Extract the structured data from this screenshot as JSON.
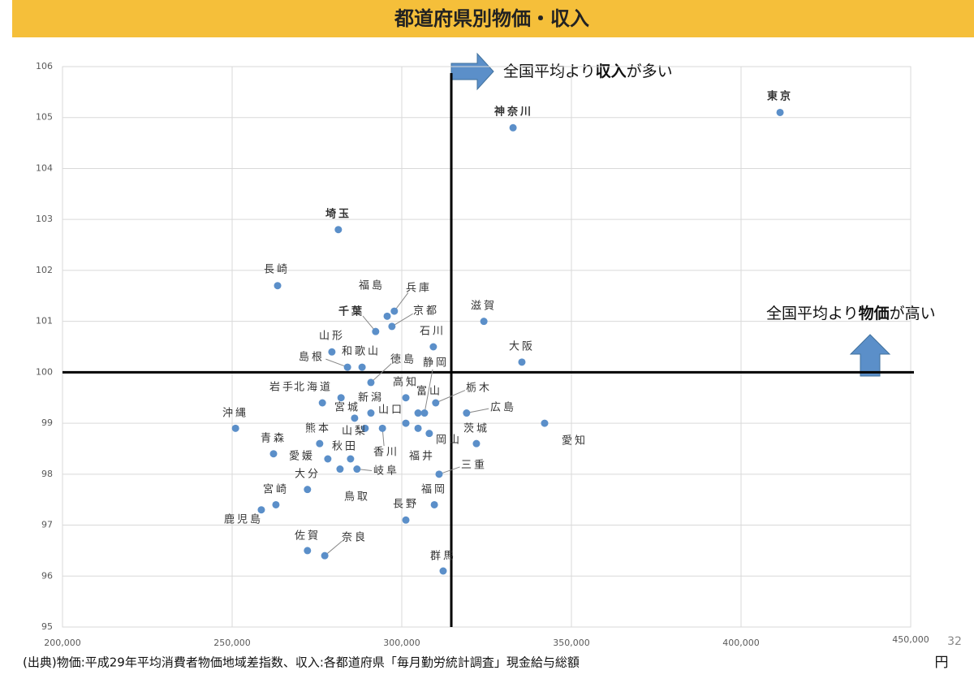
{
  "chart_data": {
    "type": "scatter",
    "title": "都道府県別物価・収入",
    "source": "(出典)物価:平成29年平均消費者物価地域差指数、収入:各都道府県「毎月勤労統計調査」現金給与総額",
    "x_unit": "円",
    "page_number": "32",
    "annotation_x": [
      "全国平均より",
      "収入",
      "が多い"
    ],
    "annotation_y": [
      "全国平均より",
      "物価",
      "が高い"
    ],
    "reference_x": 314600,
    "reference_y": 100,
    "xlim": [
      200000,
      450000
    ],
    "ylim": [
      95,
      106
    ],
    "xticks": [
      {
        "value": 200000,
        "label": "200,000"
      },
      {
        "value": 250000,
        "label": "250,000"
      },
      {
        "value": 300000,
        "label": "300,000"
      },
      {
        "value": 350000,
        "label": "350,000"
      },
      {
        "value": 400000,
        "label": "400,000"
      },
      {
        "value": 450000,
        "label": "450,000"
      }
    ],
    "yticks": [
      95,
      96,
      97,
      98,
      99,
      100,
      101,
      102,
      103,
      104,
      105,
      106
    ],
    "grid": true,
    "color": "#5b8fc9",
    "highlight_color": "#e03c31",
    "names": [
      "東京",
      "神奈川",
      "埼玉",
      "長崎",
      "福島",
      "兵庫",
      "京都",
      "千葉",
      "滋賀",
      "石川",
      "山形",
      "島根",
      "和歌山",
      "大阪",
      "徳島",
      "高知",
      "静岡",
      "富山",
      "栃木",
      "山口",
      "福井",
      "岡山",
      "香川",
      "広島",
      "茨城",
      "愛知",
      "三重",
      "福岡",
      "長野",
      "群馬",
      "沖縄",
      "青森",
      "鹿児島",
      "宮崎",
      "佐賀",
      "奈良",
      "大分",
      "愛媛",
      "熊本",
      "岩手",
      "北海道",
      "宮城",
      "新潟",
      "山梨",
      "秋田",
      "岐阜",
      "鳥取"
    ],
    "x": [
      411500,
      332800,
      281300,
      263400,
      295700,
      297800,
      297100,
      292300,
      324200,
      309300,
      279400,
      284000,
      288300,
      335400,
      290900,
      301200,
      306700,
      304800,
      310000,
      301200,
      304800,
      308100,
      294300,
      319100,
      322000,
      342100,
      311000,
      309600,
      301200,
      312200,
      251000,
      262200,
      258600,
      262900,
      272200,
      277300,
      272200,
      278200,
      275800,
      276600,
      282100,
      286100,
      290900,
      289200,
      284900,
      286800,
      281800
    ],
    "y": [
      105.1,
      104.8,
      102.8,
      101.7,
      101.1,
      101.2,
      100.9,
      100.8,
      101.0,
      100.5,
      100.4,
      100.1,
      100.1,
      100.2,
      99.8,
      99.5,
      99.2,
      99.2,
      99.4,
      99.0,
      98.9,
      98.8,
      98.9,
      99.2,
      98.6,
      99.0,
      98.0,
      97.4,
      97.1,
      96.1,
      98.9,
      98.4,
      97.3,
      97.4,
      96.5,
      96.4,
      97.7,
      98.3,
      98.6,
      99.4,
      99.5,
      99.1,
      99.2,
      98.9,
      98.3,
      98.1,
      98.1
    ],
    "highlight": [
      0,
      1,
      2,
      7
    ]
  }
}
